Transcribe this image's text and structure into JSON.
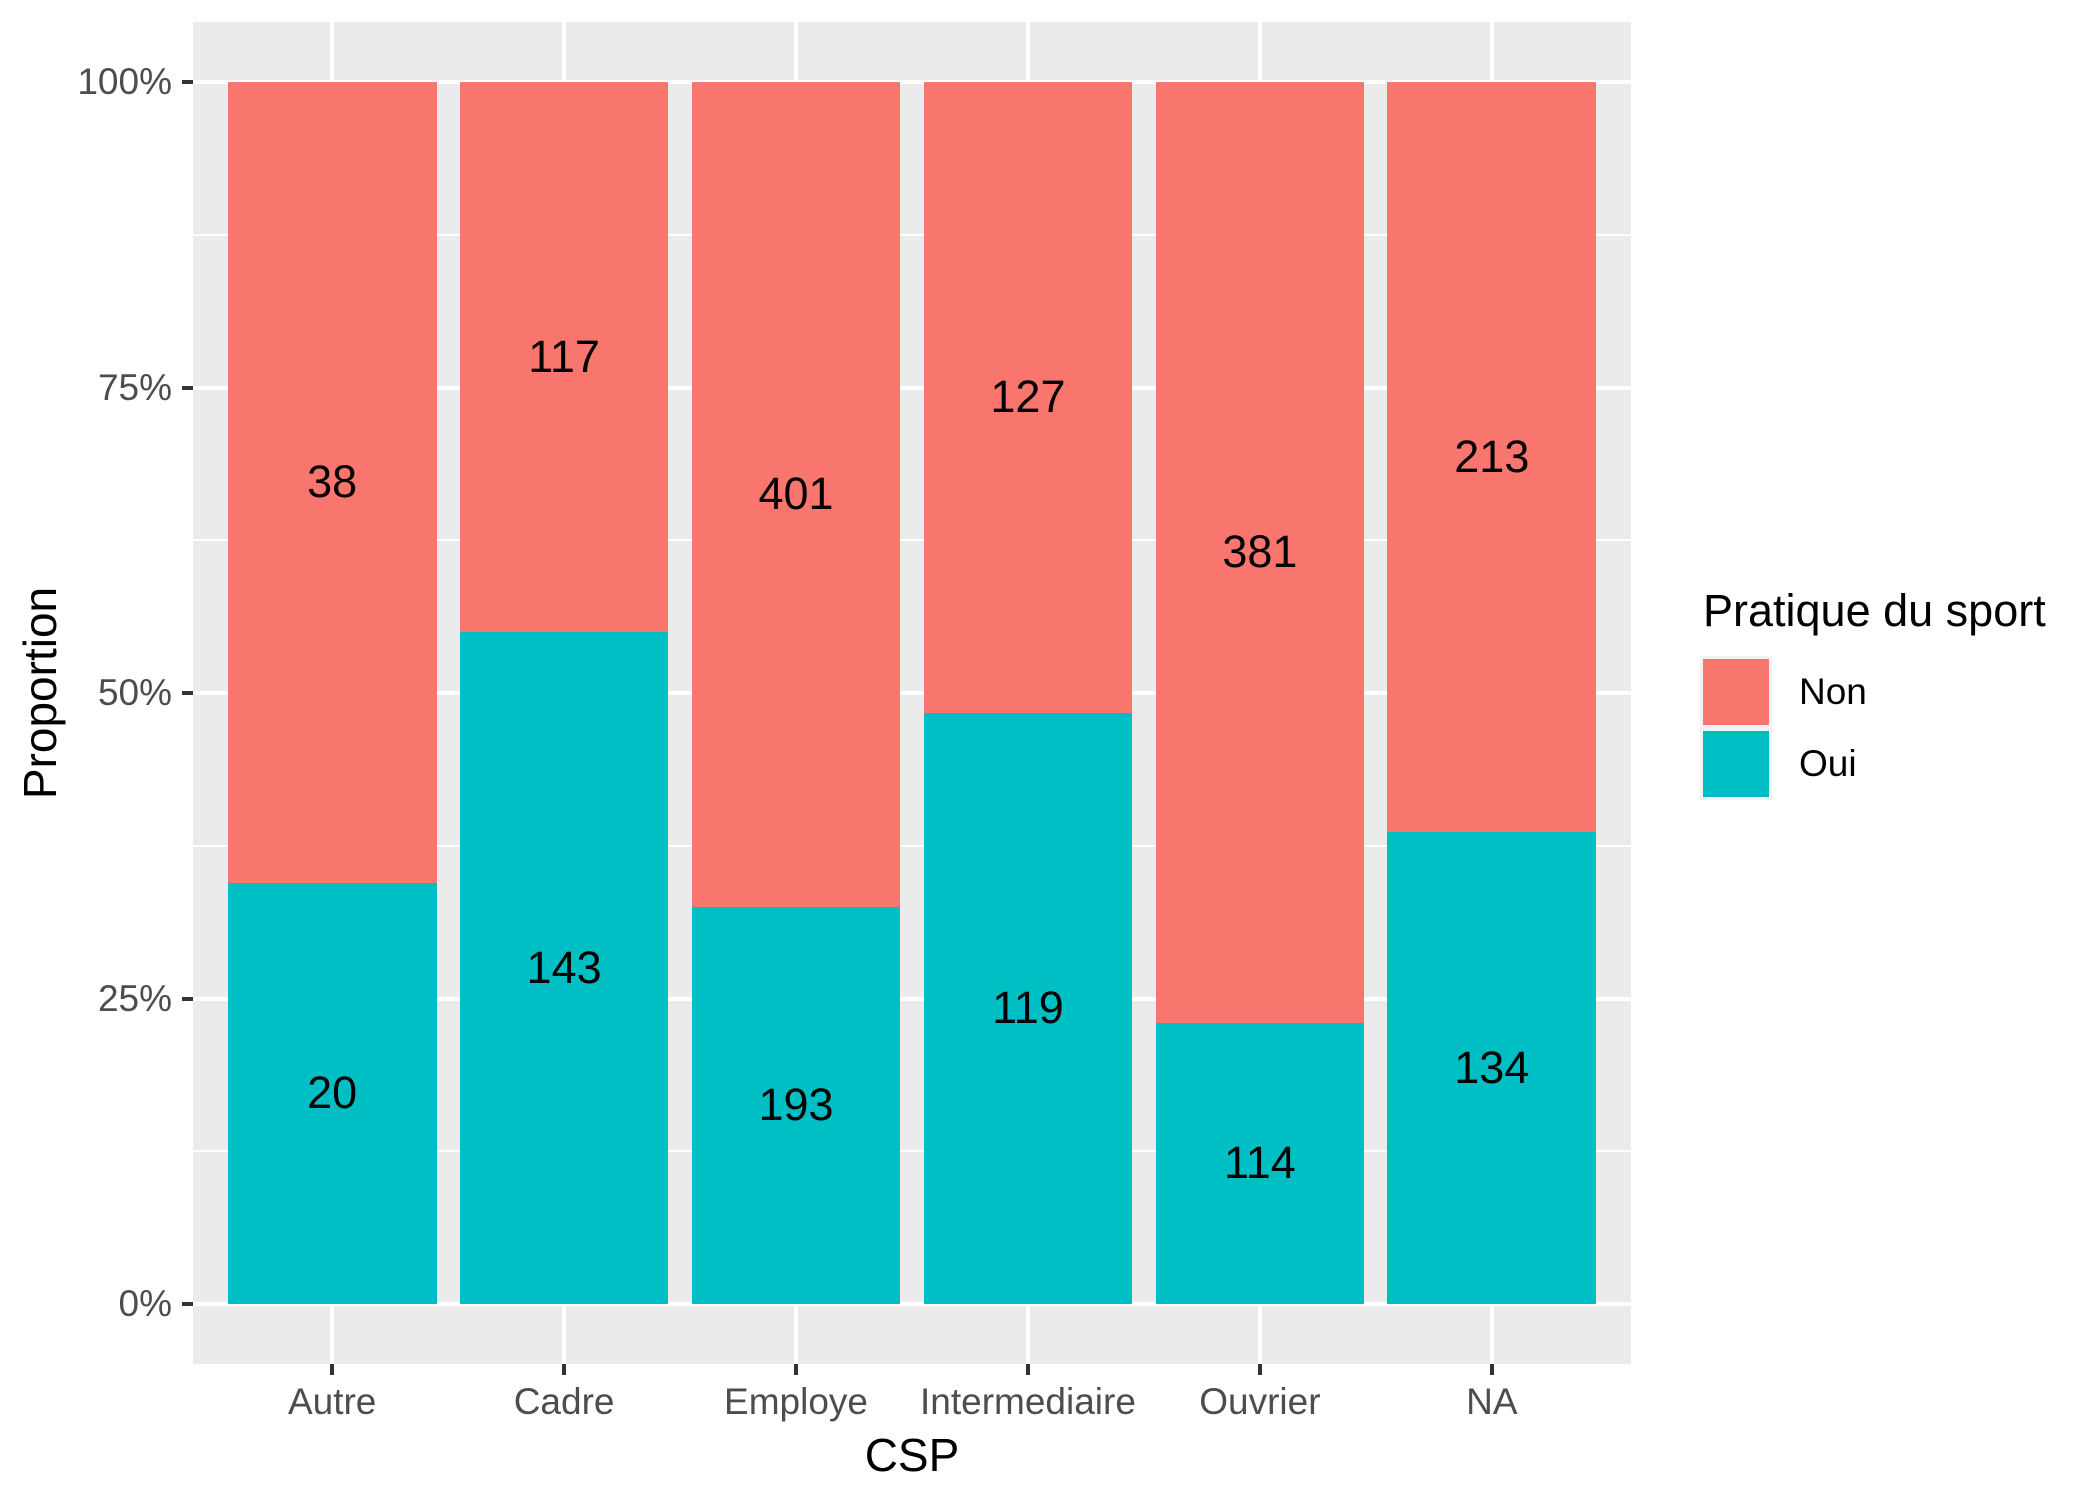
{
  "chart_data": {
    "type": "bar",
    "variant": "stacked-percent",
    "title": "",
    "xlabel": "CSP",
    "ylabel": "Proportion",
    "categories": [
      "Autre",
      "Cadre",
      "Employe",
      "Intermediaire",
      "Ouvrier",
      "NA"
    ],
    "series": [
      {
        "name": "Non",
        "color": "#F8766D",
        "values": [
          38,
          117,
          401,
          127,
          381,
          213
        ]
      },
      {
        "name": "Oui",
        "color": "#00BFC4",
        "values": [
          20,
          143,
          193,
          119,
          114,
          134
        ]
      }
    ],
    "stack_order_bottom_to_top": [
      "Oui",
      "Non"
    ],
    "y_axis": {
      "tick_labels": [
        "0%",
        "25%",
        "50%",
        "75%",
        "100%"
      ],
      "tick_values": [
        0,
        0.25,
        0.5,
        0.75,
        1
      ],
      "minor_tick_values": [
        0.125,
        0.375,
        0.625,
        0.875
      ],
      "range": [
        0,
        1
      ]
    },
    "legend": {
      "title": "Pratique du sport",
      "position": "right",
      "entries": [
        {
          "label": "Non",
          "color": "#F8766D"
        },
        {
          "label": "Oui",
          "color": "#00BFC4"
        }
      ]
    },
    "style": {
      "panel_background": "#EBEBEB",
      "gridline_color": "#FFFFFF",
      "axis_text_color": "#4D4D4D",
      "axis_title_color": "#000000",
      "bar_label_color": "#000000",
      "tick_mark_color": "#333333",
      "grid": "on"
    }
  }
}
